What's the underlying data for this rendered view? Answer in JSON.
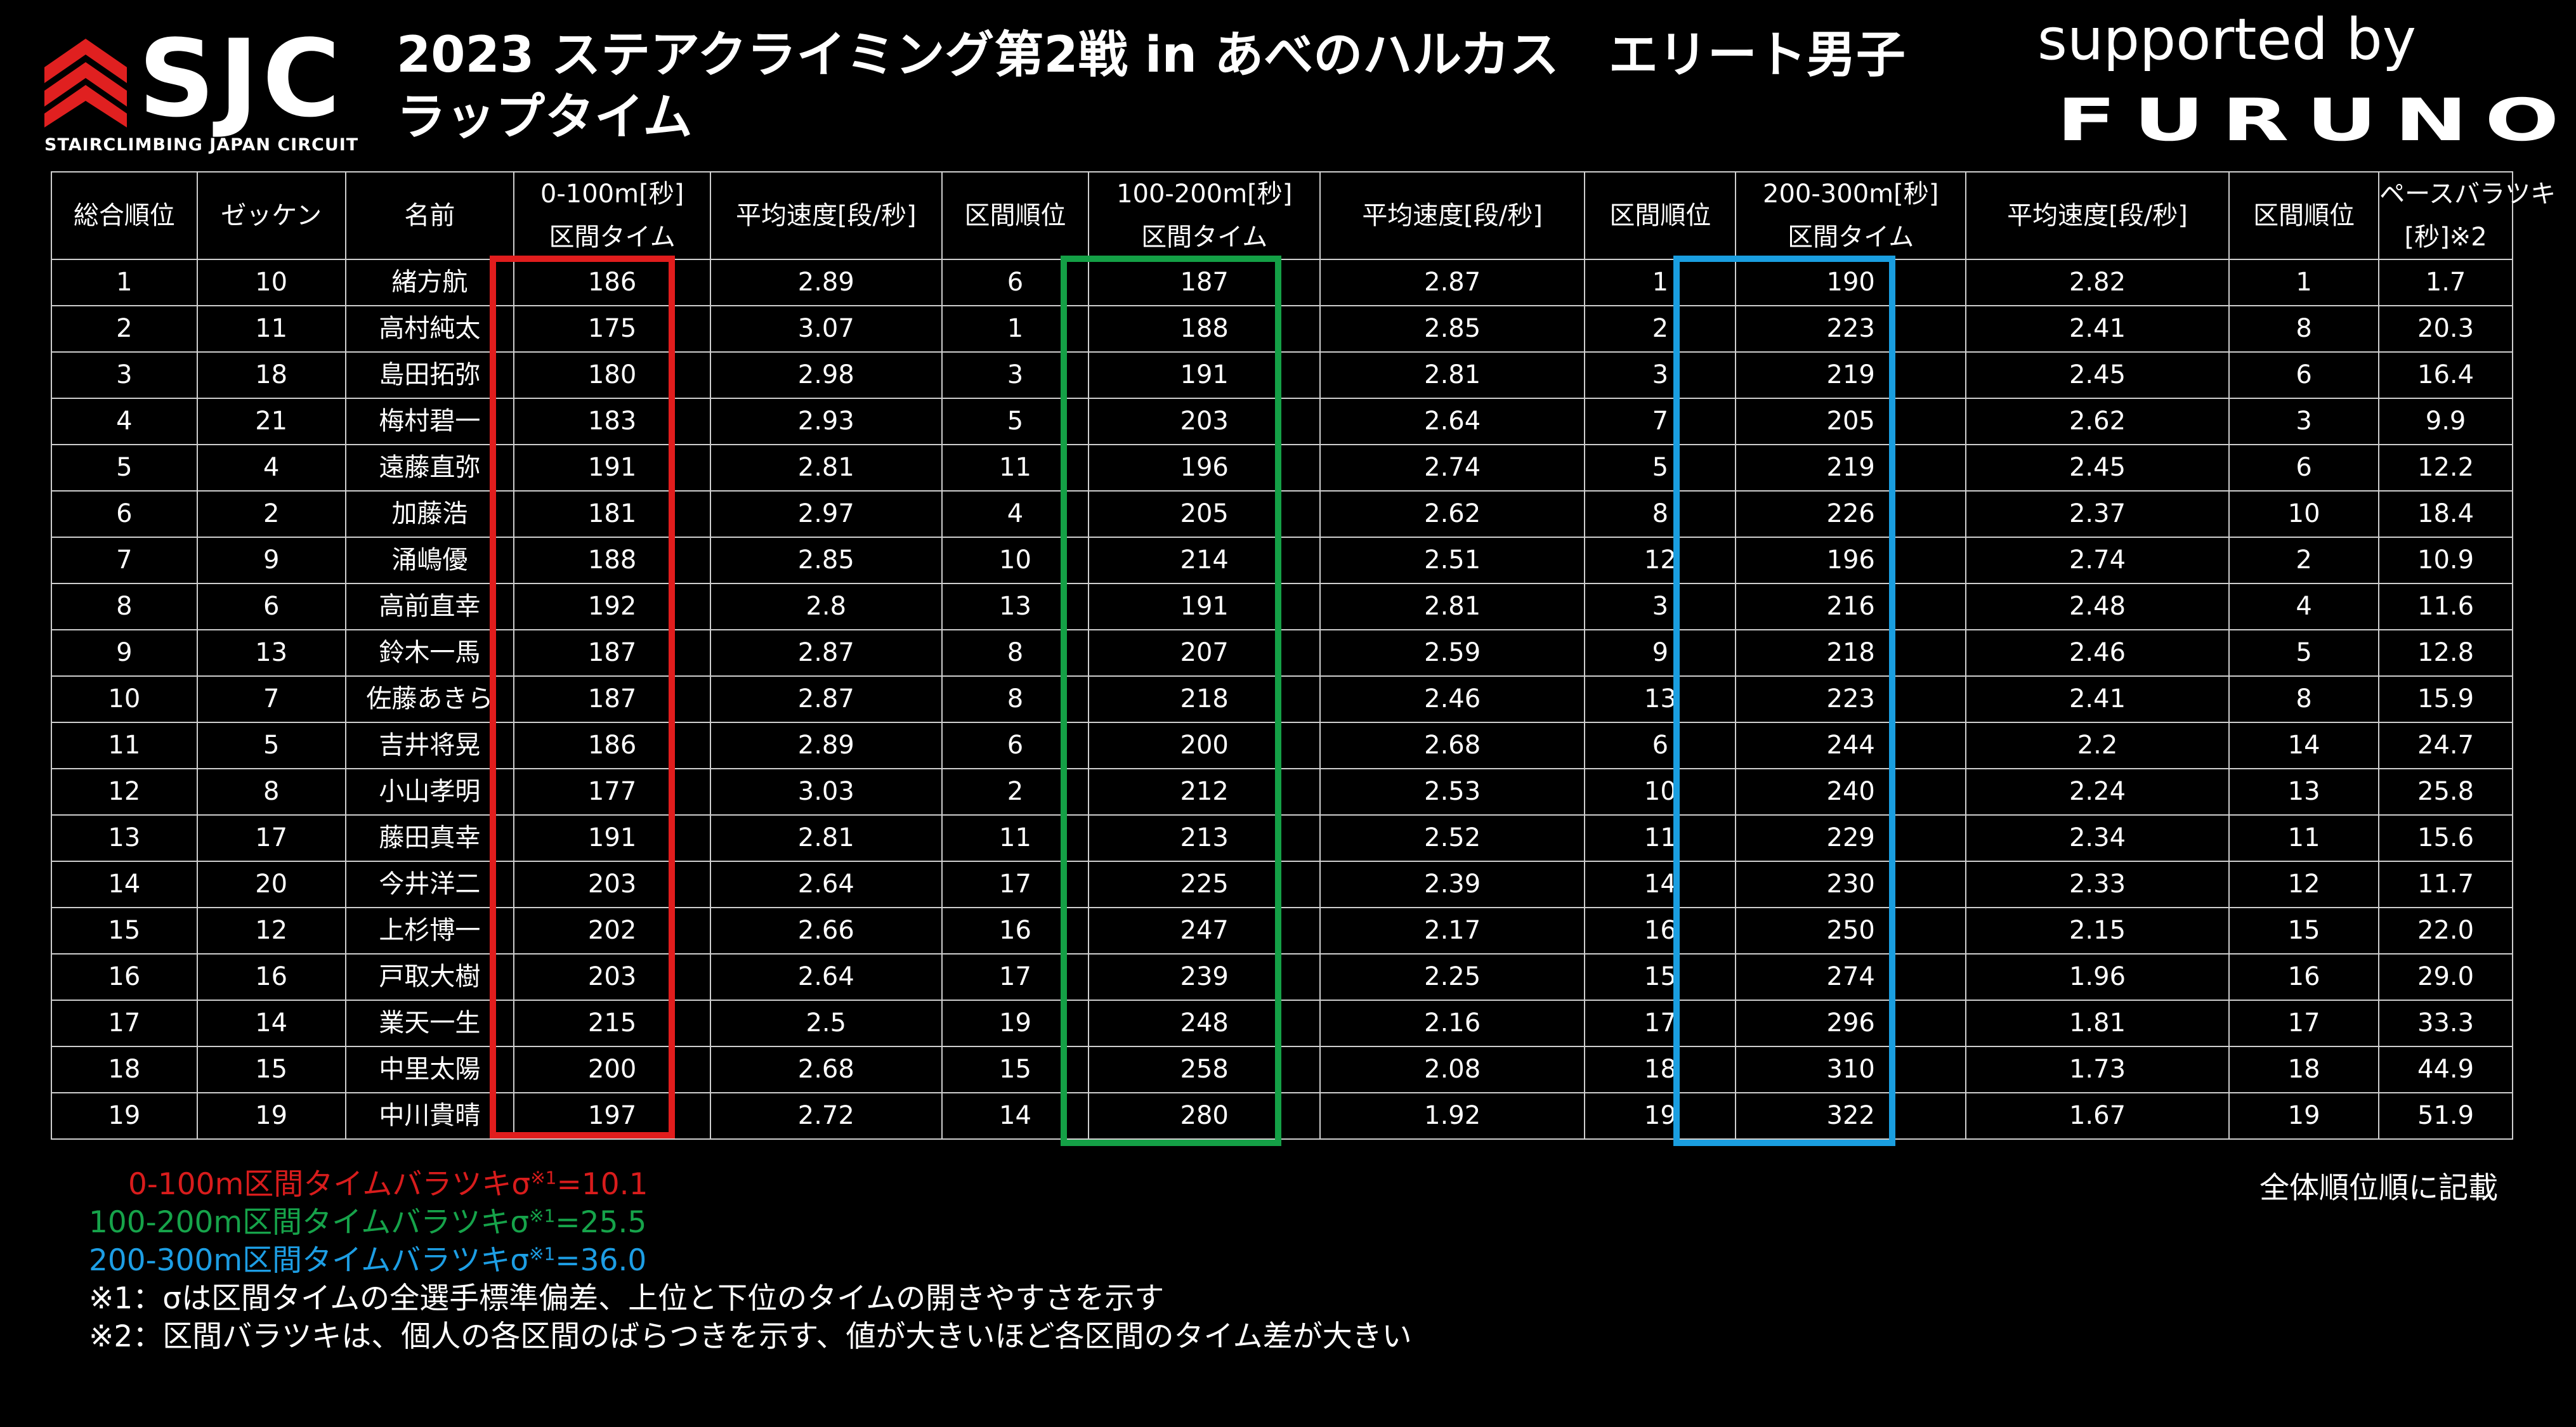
{
  "logo": {
    "text": "SJC",
    "subtitle": "STAIRCLIMBING JAPAN CIRCUIT",
    "colors": {
      "chevron": "#e02020"
    }
  },
  "title": {
    "line1": "2023 ステアクライミング第2戦 in あべのハルカス　エリート男子",
    "line2": "ラップタイム"
  },
  "sponsor": {
    "label": "supported by",
    "brand": "FURUNO"
  },
  "table": {
    "headers": [
      "総合順位",
      "ゼッケン",
      "名前",
      "0-100m[秒]\n区間タイム",
      "平均速度[段/秒]",
      "区間順位",
      "100-200m[秒]\n区間タイム",
      "平均速度[段/秒]",
      "区間順位",
      "200-300m[秒]\n区間タイム",
      "平均速度[段/秒]",
      "区間順位",
      "ペースバラツキ\n[秒]※2"
    ],
    "rows": [
      [
        "1",
        "10",
        "緒方航",
        "186",
        "2.89",
        "6",
        "187",
        "2.87",
        "1",
        "190",
        "2.82",
        "1",
        "1.7"
      ],
      [
        "2",
        "11",
        "高村純太",
        "175",
        "3.07",
        "1",
        "188",
        "2.85",
        "2",
        "223",
        "2.41",
        "8",
        "20.3"
      ],
      [
        "3",
        "18",
        "島田拓弥",
        "180",
        "2.98",
        "3",
        "191",
        "2.81",
        "3",
        "219",
        "2.45",
        "6",
        "16.4"
      ],
      [
        "4",
        "21",
        "梅村碧一",
        "183",
        "2.93",
        "5",
        "203",
        "2.64",
        "7",
        "205",
        "2.62",
        "3",
        "9.9"
      ],
      [
        "5",
        "4",
        "遠藤直弥",
        "191",
        "2.81",
        "11",
        "196",
        "2.74",
        "5",
        "219",
        "2.45",
        "6",
        "12.2"
      ],
      [
        "6",
        "2",
        "加藤浩",
        "181",
        "2.97",
        "4",
        "205",
        "2.62",
        "8",
        "226",
        "2.37",
        "10",
        "18.4"
      ],
      [
        "7",
        "9",
        "涌嶋優",
        "188",
        "2.85",
        "10",
        "214",
        "2.51",
        "12",
        "196",
        "2.74",
        "2",
        "10.9"
      ],
      [
        "8",
        "6",
        "高前直幸",
        "192",
        "2.8",
        "13",
        "191",
        "2.81",
        "3",
        "216",
        "2.48",
        "4",
        "11.6"
      ],
      [
        "9",
        "13",
        "鈴木一馬",
        "187",
        "2.87",
        "8",
        "207",
        "2.59",
        "9",
        "218",
        "2.46",
        "5",
        "12.8"
      ],
      [
        "10",
        "7",
        "佐藤あきら",
        "187",
        "2.87",
        "8",
        "218",
        "2.46",
        "13",
        "223",
        "2.41",
        "8",
        "15.9"
      ],
      [
        "11",
        "5",
        "吉井将晃",
        "186",
        "2.89",
        "6",
        "200",
        "2.68",
        "6",
        "244",
        "2.2",
        "14",
        "24.7"
      ],
      [
        "12",
        "8",
        "小山孝明",
        "177",
        "3.03",
        "2",
        "212",
        "2.53",
        "10",
        "240",
        "2.24",
        "13",
        "25.8"
      ],
      [
        "13",
        "17",
        "藤田真幸",
        "191",
        "2.81",
        "11",
        "213",
        "2.52",
        "11",
        "229",
        "2.34",
        "11",
        "15.6"
      ],
      [
        "14",
        "20",
        "今井洋二",
        "203",
        "2.64",
        "17",
        "225",
        "2.39",
        "14",
        "230",
        "2.33",
        "12",
        "11.7"
      ],
      [
        "15",
        "12",
        "上杉博一",
        "202",
        "2.66",
        "16",
        "247",
        "2.17",
        "16",
        "250",
        "2.15",
        "15",
        "22.0"
      ],
      [
        "16",
        "16",
        "戸取大樹",
        "203",
        "2.64",
        "17",
        "239",
        "2.25",
        "15",
        "274",
        "1.96",
        "16",
        "29.0"
      ],
      [
        "17",
        "14",
        "業天一生",
        "215",
        "2.5",
        "19",
        "248",
        "2.16",
        "17",
        "296",
        "1.81",
        "17",
        "33.3"
      ],
      [
        "18",
        "15",
        "中里太陽",
        "200",
        "2.68",
        "15",
        "258",
        "2.08",
        "18",
        "310",
        "1.73",
        "18",
        "44.9"
      ],
      [
        "19",
        "19",
        "中川貴晴",
        "197",
        "2.72",
        "14",
        "280",
        "1.92",
        "19",
        "322",
        "1.67",
        "19",
        "51.9"
      ]
    ]
  },
  "highlights": {
    "red": "#e11d1d",
    "green": "#14a046",
    "blue": "#1a9ee0"
  },
  "notes": {
    "red_prefix": "0-100m区間タイムバラツキσ",
    "red_sup": "※1",
    "red_value": "=10.1",
    "green_prefix": "100-200m区間タイムバラツキσ",
    "green_sup": "※1",
    "green_value": "=25.5",
    "blue_prefix": "200-300m区間タイムバラツキσ",
    "blue_sup": "※1",
    "blue_value": "=36.0",
    "note1": "※1：σは区間タイムの全選手標準偏差、上位と下位のタイムの開きやすさを示す",
    "note2": "※2：区間バラツキは、個人の各区間のばらつきを示す、値が大きいほど各区間のタイム差が大きい",
    "order": "全体順位順に記載"
  }
}
